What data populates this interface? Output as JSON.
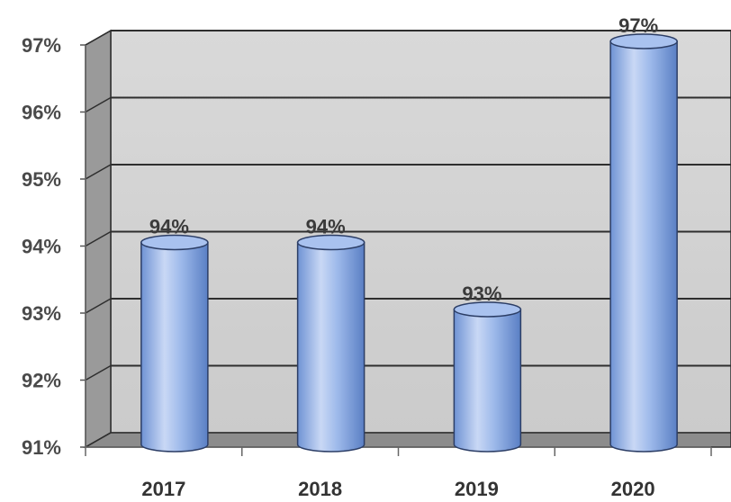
{
  "chart_data": {
    "type": "bar",
    "style": "3d-cylinder",
    "categories": [
      "2017",
      "2018",
      "2019",
      "2020"
    ],
    "values": [
      94,
      94,
      93,
      97
    ],
    "value_labels": [
      "94%",
      "94%",
      "93%",
      "97%"
    ],
    "yticks": [
      "91%",
      "92%",
      "93%",
      "94%",
      "95%",
      "96%",
      "97%"
    ],
    "ylim": [
      91,
      97
    ],
    "grid": true,
    "title": "",
    "xlabel": "",
    "ylabel": "",
    "colors": {
      "bar_light": "#c9d8f5",
      "bar_mid": "#8fb0e6",
      "bar_dark": "#5a7fc4",
      "bar_top": "#a9c2ef",
      "wall": "#d2d2d2",
      "side_wall": "#9a9a9a",
      "floor": "#8c8c8c",
      "grid": "#2e2e2e"
    }
  }
}
